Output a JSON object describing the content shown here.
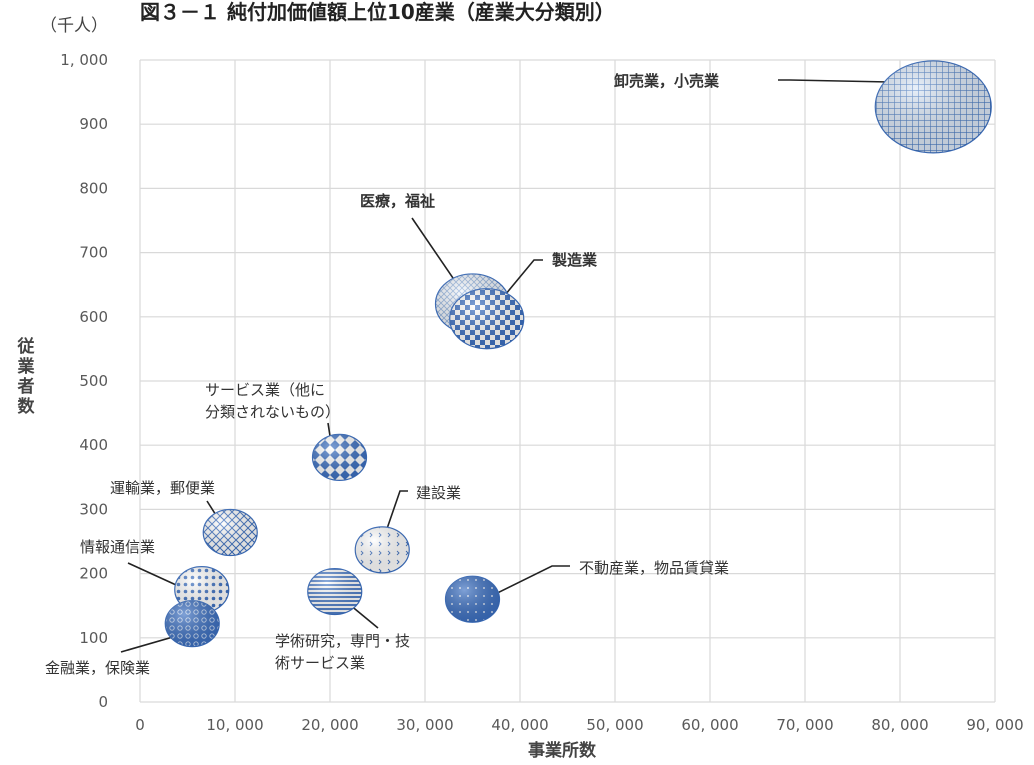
{
  "chart_data": {
    "type": "scatter",
    "title": "図３－１ 純付加価値額上位10産業（産業大分類別）",
    "unit_label": "（千人）",
    "xlabel": "事業所数",
    "ylabel": "従業者数",
    "xlim": [
      0,
      90000
    ],
    "ylim": [
      0,
      1000
    ],
    "x_ticks": [
      "0",
      "10, 000",
      "20, 000",
      "30, 000",
      "40, 000",
      "50, 000",
      "60, 000",
      "70, 000",
      "80, 000",
      "90, 000"
    ],
    "y_ticks": [
      "0",
      "100",
      "200",
      "300",
      "400",
      "500",
      "600",
      "700",
      "800",
      "900",
      "1, 000"
    ],
    "grid": true,
    "points": [
      {
        "label": "卸売業，小売業",
        "x": 83500,
        "y": 927,
        "size": "large",
        "pattern": "grid"
      },
      {
        "label": "医療，福祉",
        "x": 35000,
        "y": 620,
        "size": "medium",
        "pattern": "diag-light"
      },
      {
        "label": "製造業",
        "x": 36500,
        "y": 597,
        "size": "medium",
        "pattern": "checker"
      },
      {
        "label": "サービス業（他に分類されないもの）",
        "x": 21000,
        "y": 381,
        "size": "small",
        "pattern": "diamond"
      },
      {
        "label": "運輸業，郵便業",
        "x": 9500,
        "y": 264,
        "size": "small",
        "pattern": "lattice"
      },
      {
        "label": "建設業",
        "x": 25500,
        "y": 237,
        "size": "small",
        "pattern": "sparse"
      },
      {
        "label": "情報通信業",
        "x": 6500,
        "y": 175,
        "size": "small",
        "pattern": "dots"
      },
      {
        "label": "学術研究，専門・技術サービス業",
        "x": 20500,
        "y": 172,
        "size": "small",
        "pattern": "hlines"
      },
      {
        "label": "不動産業，物品賃貸業",
        "x": 35000,
        "y": 160,
        "size": "small",
        "pattern": "solid-dots"
      },
      {
        "label": "金融業，保険業",
        "x": 5500,
        "y": 122,
        "size": "small",
        "pattern": "circles"
      }
    ],
    "annotation_lines": [
      "サービス業（他に",
      "分類されないもの）",
      "学術研究，専門・技",
      "術サービス業"
    ]
  }
}
